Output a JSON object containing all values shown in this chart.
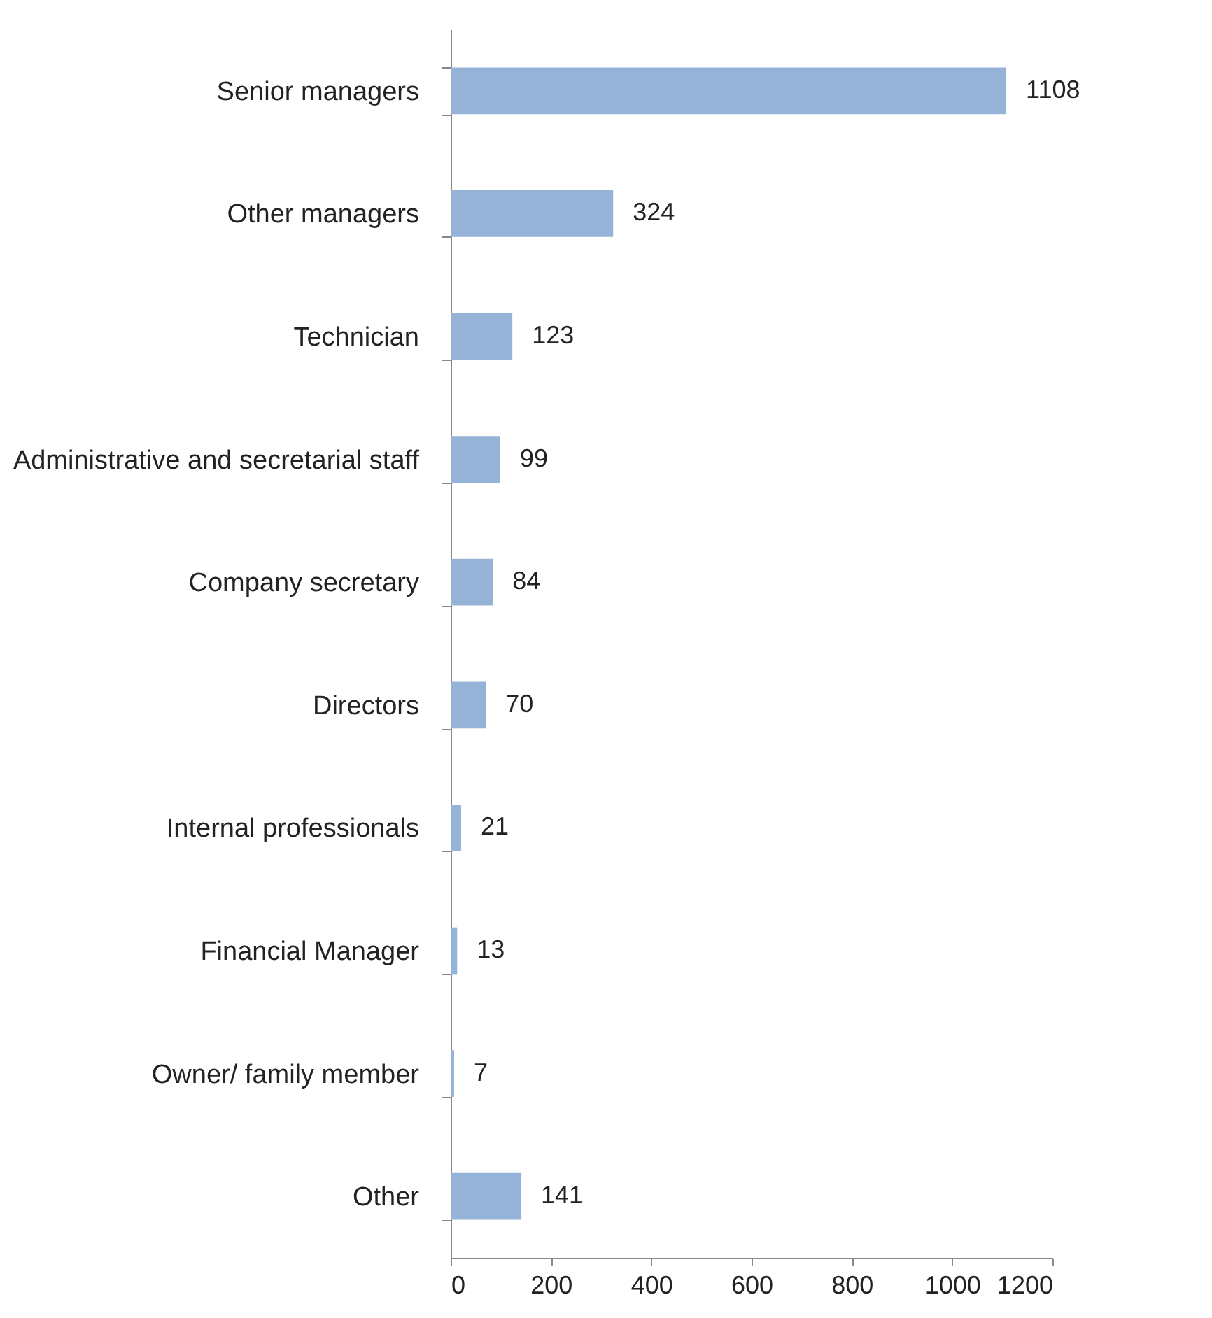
{
  "chart_data": {
    "type": "bar",
    "orientation": "horizontal",
    "categories": [
      "Senior managers",
      "Other managers",
      "Technician",
      "Administrative and secretarial staff",
      "Company secretary",
      "Directors",
      "Internal professionals",
      "Financial Manager",
      "Owner/ family member",
      "Other"
    ],
    "values": [
      1108,
      324,
      123,
      99,
      84,
      70,
      21,
      13,
      7,
      141
    ],
    "color": "#95b3d7",
    "xlim": [
      0,
      1200
    ],
    "xticks": [
      0,
      200,
      400,
      600,
      800,
      1000,
      1200
    ],
    "data_labels": true,
    "grid": false
  }
}
